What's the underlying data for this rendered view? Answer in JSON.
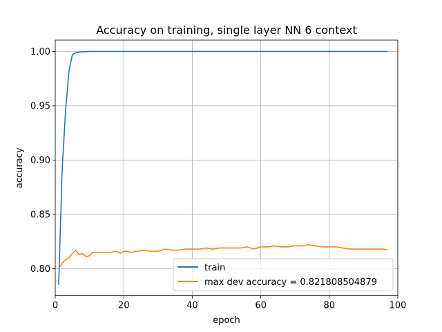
{
  "chart_data": {
    "type": "line",
    "title": "Accuracy on training, single layer NN 6 context",
    "xlabel": "epoch",
    "ylabel": "accuracy",
    "xlim": [
      0,
      100
    ],
    "ylim": [
      0.775,
      1.0105
    ],
    "xticks": [
      0,
      20,
      40,
      60,
      80,
      100
    ],
    "xtick_labels": [
      "0",
      "20",
      "40",
      "60",
      "80",
      "100"
    ],
    "yticks": [
      0.8,
      0.85,
      0.9,
      0.95,
      1.0
    ],
    "ytick_labels": [
      "0.80",
      "0.85",
      "0.90",
      "0.95",
      "1.00"
    ],
    "grid": true,
    "legend_position": "lower right",
    "series": [
      {
        "name": "train",
        "color": "#1f77b4",
        "x": [
          1,
          2,
          3,
          4,
          5,
          6,
          7,
          8,
          9,
          10,
          15,
          20,
          30,
          40,
          50,
          60,
          70,
          80,
          90,
          97
        ],
        "y": [
          0.785,
          0.89,
          0.945,
          0.982,
          0.997,
          0.999,
          0.9995,
          0.9998,
          0.9999,
          1.0,
          1.0,
          1.0,
          1.0,
          1.0,
          1.0,
          1.0,
          1.0,
          1.0,
          1.0,
          1.0
        ]
      },
      {
        "name": "max dev accuracy = 0.821808504879",
        "color": "#ff7f0e",
        "x": [
          1,
          2,
          3,
          4,
          5,
          6,
          7,
          8,
          9,
          10,
          11,
          12,
          14,
          16,
          18,
          19,
          20,
          21,
          22,
          24,
          26,
          28,
          30,
          32,
          34,
          36,
          38,
          40,
          42,
          44,
          46,
          48,
          50,
          52,
          54,
          56,
          58,
          59,
          60,
          62,
          64,
          66,
          68,
          70,
          72,
          74,
          76,
          78,
          80,
          82,
          84,
          86,
          88,
          90,
          92,
          94,
          96,
          97
        ],
        "y": [
          0.8,
          0.805,
          0.808,
          0.81,
          0.814,
          0.817,
          0.813,
          0.814,
          0.811,
          0.812,
          0.815,
          0.815,
          0.815,
          0.815,
          0.816,
          0.814,
          0.816,
          0.816,
          0.815,
          0.816,
          0.817,
          0.816,
          0.816,
          0.818,
          0.817,
          0.817,
          0.818,
          0.818,
          0.818,
          0.819,
          0.818,
          0.819,
          0.819,
          0.819,
          0.819,
          0.82,
          0.818,
          0.819,
          0.82,
          0.82,
          0.821,
          0.82,
          0.82,
          0.821,
          0.821,
          0.822,
          0.821,
          0.82,
          0.82,
          0.82,
          0.819,
          0.818,
          0.818,
          0.818,
          0.818,
          0.818,
          0.818,
          0.817
        ]
      }
    ]
  }
}
